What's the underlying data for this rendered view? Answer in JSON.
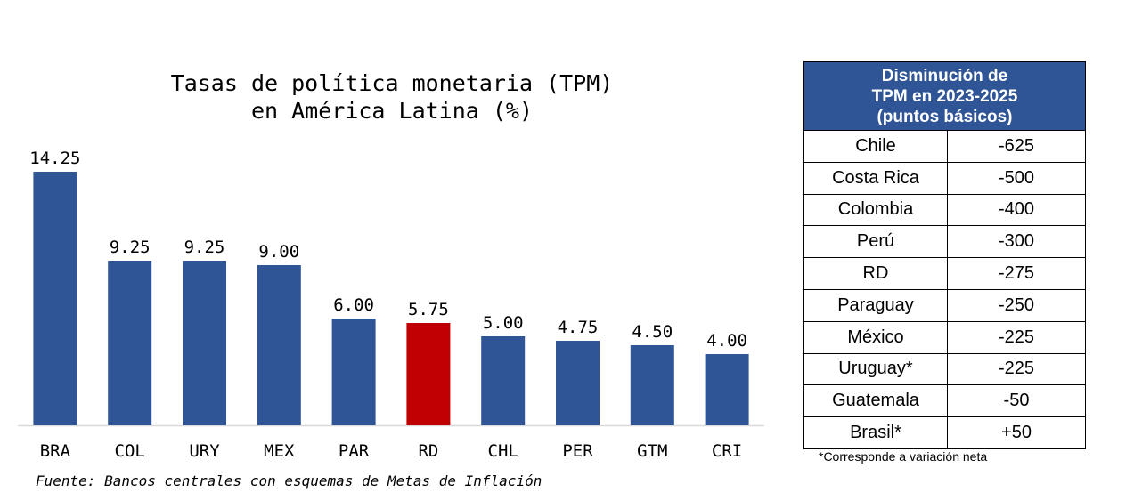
{
  "chart_data": {
    "type": "bar",
    "title_lines": [
      "Tasas de política monetaria (TPM)",
      "en América Latina (%)"
    ],
    "categories": [
      "BRA",
      "COL",
      "URY",
      "MEX",
      "PAR",
      "RD",
      "CHL",
      "PER",
      "GTM",
      "CRI"
    ],
    "values": [
      14.25,
      9.25,
      9.25,
      9.0,
      6.0,
      5.75,
      5.0,
      4.75,
      4.5,
      4.0
    ],
    "value_labels": [
      "14.25",
      "9.25",
      "9.25",
      "9.00",
      "6.00",
      "5.75",
      "5.00",
      "4.75",
      "4.50",
      "4.00"
    ],
    "highlight_index": 5,
    "ylim": [
      0,
      14.25
    ],
    "xlabel": "",
    "ylabel": "",
    "colors": {
      "bar": "#2F5597",
      "highlight": "#C00000",
      "axis": "#D9D9D9"
    }
  },
  "source": "Fuente: Bancos centrales con esquemas de Metas de Inflación",
  "table": {
    "header_lines": [
      "Disminución de",
      "TPM en 2023-2025",
      "(puntos básicos)"
    ],
    "rows": [
      {
        "country": "Chile",
        "value": "-625"
      },
      {
        "country": "Costa Rica",
        "value": "-500"
      },
      {
        "country": "Colombia",
        "value": "-400"
      },
      {
        "country": "Perú",
        "value": "-300"
      },
      {
        "country": "RD",
        "value": "-275"
      },
      {
        "country": "Paraguay",
        "value": "-250"
      },
      {
        "country": "México",
        "value": "-225"
      },
      {
        "country": "Uruguay*",
        "value": "-225"
      },
      {
        "country": "Guatemala",
        "value": "-50"
      },
      {
        "country": "Brasil*",
        "value": "+50"
      }
    ],
    "footnote": "*Corresponde a variación neta"
  }
}
